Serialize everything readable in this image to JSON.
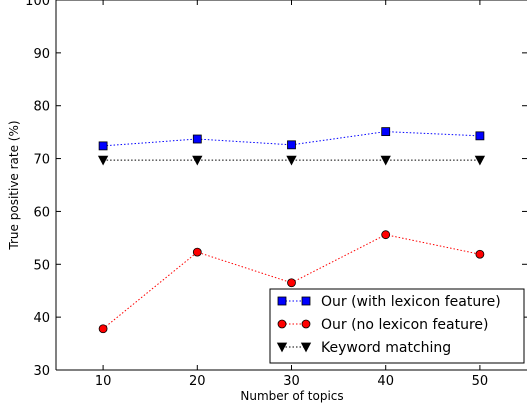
{
  "chart_data": {
    "type": "line",
    "title": "",
    "xlabel": "Number of topics",
    "ylabel": "True positive rate (%)",
    "xlim": [
      5,
      55
    ],
    "ylim": [
      30,
      100
    ],
    "x": [
      10,
      20,
      30,
      40,
      50
    ],
    "xticks": [
      "10",
      "20",
      "30",
      "40",
      "50"
    ],
    "yticks": [
      "30",
      "40",
      "50",
      "60",
      "70",
      "80",
      "90",
      "100"
    ],
    "legend_position": "bottom-right",
    "grid": false,
    "series": [
      {
        "name": "Our (with lexicon feature)",
        "values": [
          72.4,
          73.7,
          72.6,
          75.1,
          74.3
        ],
        "color": "#0000ff",
        "marker": "square"
      },
      {
        "name": "Our (no lexicon feature)",
        "values": [
          37.8,
          52.3,
          46.5,
          55.6,
          51.9
        ],
        "color": "#ff0000",
        "marker": "circle"
      },
      {
        "name": "Keyword matching",
        "values": [
          69.7,
          69.7,
          69.7,
          69.7,
          69.7
        ],
        "color": "#000000",
        "marker": "triangle-down"
      }
    ]
  }
}
